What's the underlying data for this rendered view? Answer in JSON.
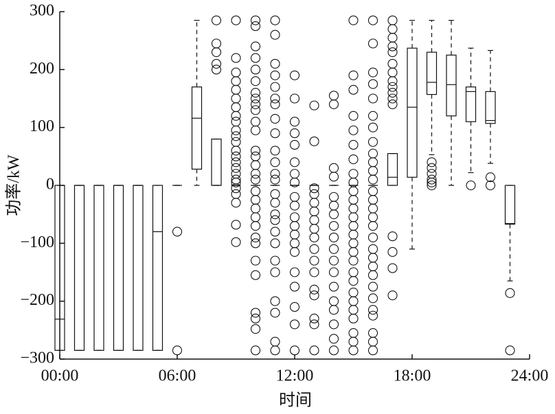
{
  "chart_data": {
    "type": "box",
    "xlabel": "时间",
    "ylabel": "功率/kW",
    "xlim": [
      0,
      24
    ],
    "xticks": [
      {
        "value": 0,
        "label": "00:00"
      },
      {
        "value": 6,
        "label": "06:00"
      },
      {
        "value": 12,
        "label": "12:00"
      },
      {
        "value": 18,
        "label": "18:00"
      },
      {
        "value": 24,
        "label": "24:00"
      }
    ],
    "ylim": [
      -300,
      300
    ],
    "yticks": [
      {
        "value": -300,
        "label": "−300"
      },
      {
        "value": -200,
        "label": "−200"
      },
      {
        "value": -100,
        "label": "−100"
      },
      0,
      100,
      200,
      300
    ],
    "color": "#111111",
    "boxes": [
      {
        "x": 0,
        "q1": -285,
        "median": -231,
        "q3": 0,
        "whislo": -285,
        "whishi": 0,
        "fliers": []
      },
      {
        "x": 1,
        "q1": -285,
        "median": 0,
        "q3": 0,
        "whislo": -285,
        "whishi": 0,
        "fliers": []
      },
      {
        "x": 2,
        "q1": -285,
        "median": 0,
        "q3": 0,
        "whislo": -285,
        "whishi": 0,
        "fliers": []
      },
      {
        "x": 3,
        "q1": -285,
        "median": 0,
        "q3": 0,
        "whislo": -285,
        "whishi": 0,
        "fliers": []
      },
      {
        "x": 4,
        "q1": -285,
        "median": 0,
        "q3": 0,
        "whislo": -285,
        "whishi": 0,
        "fliers": []
      },
      {
        "x": 5,
        "q1": -285,
        "median": -80,
        "q3": 0,
        "whislo": -285,
        "whishi": 0,
        "fliers": []
      },
      {
        "x": 6,
        "q1": 0,
        "median": 0,
        "q3": 0,
        "whislo": 0,
        "whishi": 0,
        "fliers": [
          -80,
          -285
        ]
      },
      {
        "x": 7,
        "q1": 28,
        "median": 116,
        "q3": 170,
        "whislo": 0,
        "whishi": 285,
        "fliers": []
      },
      {
        "x": 8,
        "q1": 0,
        "median": 0,
        "q3": 80,
        "whislo": 0,
        "whishi": 80,
        "fliers": [
          285,
          245,
          230,
          210,
          200
        ]
      },
      {
        "x": 9,
        "q1": 0,
        "median": 0,
        "q3": 0,
        "whislo": 0,
        "whishi": 0,
        "fliers": [
          285,
          220,
          195,
          180,
          165,
          150,
          135,
          120,
          110,
          95,
          85,
          75,
          60,
          50,
          40,
          30,
          20,
          10,
          5,
          -5,
          -15,
          -30,
          -68,
          -98
        ]
      },
      {
        "x": 10,
        "q1": 0,
        "median": 0,
        "q3": 0,
        "whislo": 0,
        "whishi": 0,
        "fliers": [
          285,
          275,
          240,
          220,
          200,
          180,
          160,
          150,
          140,
          130,
          110,
          95,
          60,
          50,
          35,
          20,
          10,
          -10,
          -25,
          -40,
          -55,
          -70,
          -90,
          -100,
          -130,
          -155,
          -220,
          -230,
          -248,
          -285
        ]
      },
      {
        "x": 11,
        "q1": 0,
        "median": 0,
        "q3": 0,
        "whislo": 0,
        "whishi": 0,
        "fliers": [
          285,
          260,
          210,
          190,
          170,
          150,
          140,
          115,
          90,
          60,
          40,
          20,
          10,
          -15,
          -30,
          -50,
          -60,
          -80,
          -100,
          -130,
          -150,
          -200,
          -220,
          -270,
          -285
        ]
      },
      {
        "x": 12,
        "q1": 0,
        "median": 0,
        "q3": 0,
        "whislo": 0,
        "whishi": 0,
        "fliers": [
          190,
          150,
          110,
          90,
          70,
          40,
          20,
          5,
          -20,
          -35,
          -55,
          -70,
          -85,
          -100,
          -115,
          -150,
          -175,
          -210,
          -240,
          -285
        ]
      },
      {
        "x": 13,
        "q1": 0,
        "median": 0,
        "q3": 0,
        "whislo": 0,
        "whishi": 0,
        "fliers": [
          138,
          76,
          -5,
          -15,
          -30,
          -45,
          -60,
          -75,
          -90,
          -110,
          -130,
          -150,
          -180,
          -190,
          -230,
          -240,
          -285
        ]
      },
      {
        "x": 14,
        "q1": 0,
        "median": 0,
        "q3": 0,
        "whislo": 0,
        "whishi": 0,
        "fliers": [
          155,
          140,
          30,
          15,
          -20,
          -35,
          -50,
          -70,
          -90,
          -110,
          -130,
          -150,
          -175,
          -200,
          -215,
          -240,
          -265,
          -285
        ]
      },
      {
        "x": 15,
        "q1": 0,
        "median": 0,
        "q3": 0,
        "whislo": 0,
        "whishi": 0,
        "fliers": [
          285,
          190,
          165,
          120,
          95,
          70,
          45,
          20,
          5,
          -10,
          -25,
          -40,
          -55,
          -70,
          -85,
          -100,
          -115,
          -130,
          -150,
          -165,
          -185,
          -200,
          -215,
          -230,
          -255,
          -270,
          -285
        ]
      },
      {
        "x": 16,
        "q1": 0,
        "median": 0,
        "q3": 0,
        "whislo": 0,
        "whishi": 0,
        "fliers": [
          285,
          245,
          195,
          175,
          150,
          120,
          100,
          75,
          55,
          40,
          25,
          10,
          -10,
          -25,
          -40,
          -55,
          -70,
          -90,
          -110,
          -125,
          -140,
          -155,
          -175,
          -195,
          -215,
          -225,
          -255,
          -270,
          -285
        ]
      },
      {
        "x": 17,
        "q1": 0,
        "median": 14,
        "q3": 55,
        "whislo": 0,
        "whishi": 55,
        "fliers": [
          285,
          270,
          255,
          240,
          230,
          210,
          195,
          180,
          170,
          160,
          150,
          140,
          -88,
          -115,
          -143,
          -190
        ]
      },
      {
        "x": 18,
        "q1": 14,
        "median": 135,
        "q3": 237,
        "whislo": -110,
        "whishi": 285,
        "fliers": []
      },
      {
        "x": 19,
        "q1": 157,
        "median": 178,
        "q3": 230,
        "whislo": 53,
        "whishi": 285,
        "fliers": [
          40,
          30,
          20,
          10,
          5,
          0
        ]
      },
      {
        "x": 20,
        "q1": 120,
        "median": 174,
        "q3": 225,
        "whislo": 0,
        "whishi": 285,
        "fliers": []
      },
      {
        "x": 21,
        "q1": 110,
        "median": 162,
        "q3": 170,
        "whislo": 22,
        "whishi": 237,
        "fliers": [
          0
        ]
      },
      {
        "x": 22,
        "q1": 107,
        "median": 112,
        "q3": 162,
        "whislo": 38,
        "whishi": 233,
        "fliers": [
          14,
          0
        ]
      },
      {
        "x": 23,
        "q1": -67,
        "median": -66,
        "q3": 0,
        "whislo": -165,
        "whishi": 0,
        "fliers": [
          -186,
          -285
        ]
      }
    ]
  }
}
